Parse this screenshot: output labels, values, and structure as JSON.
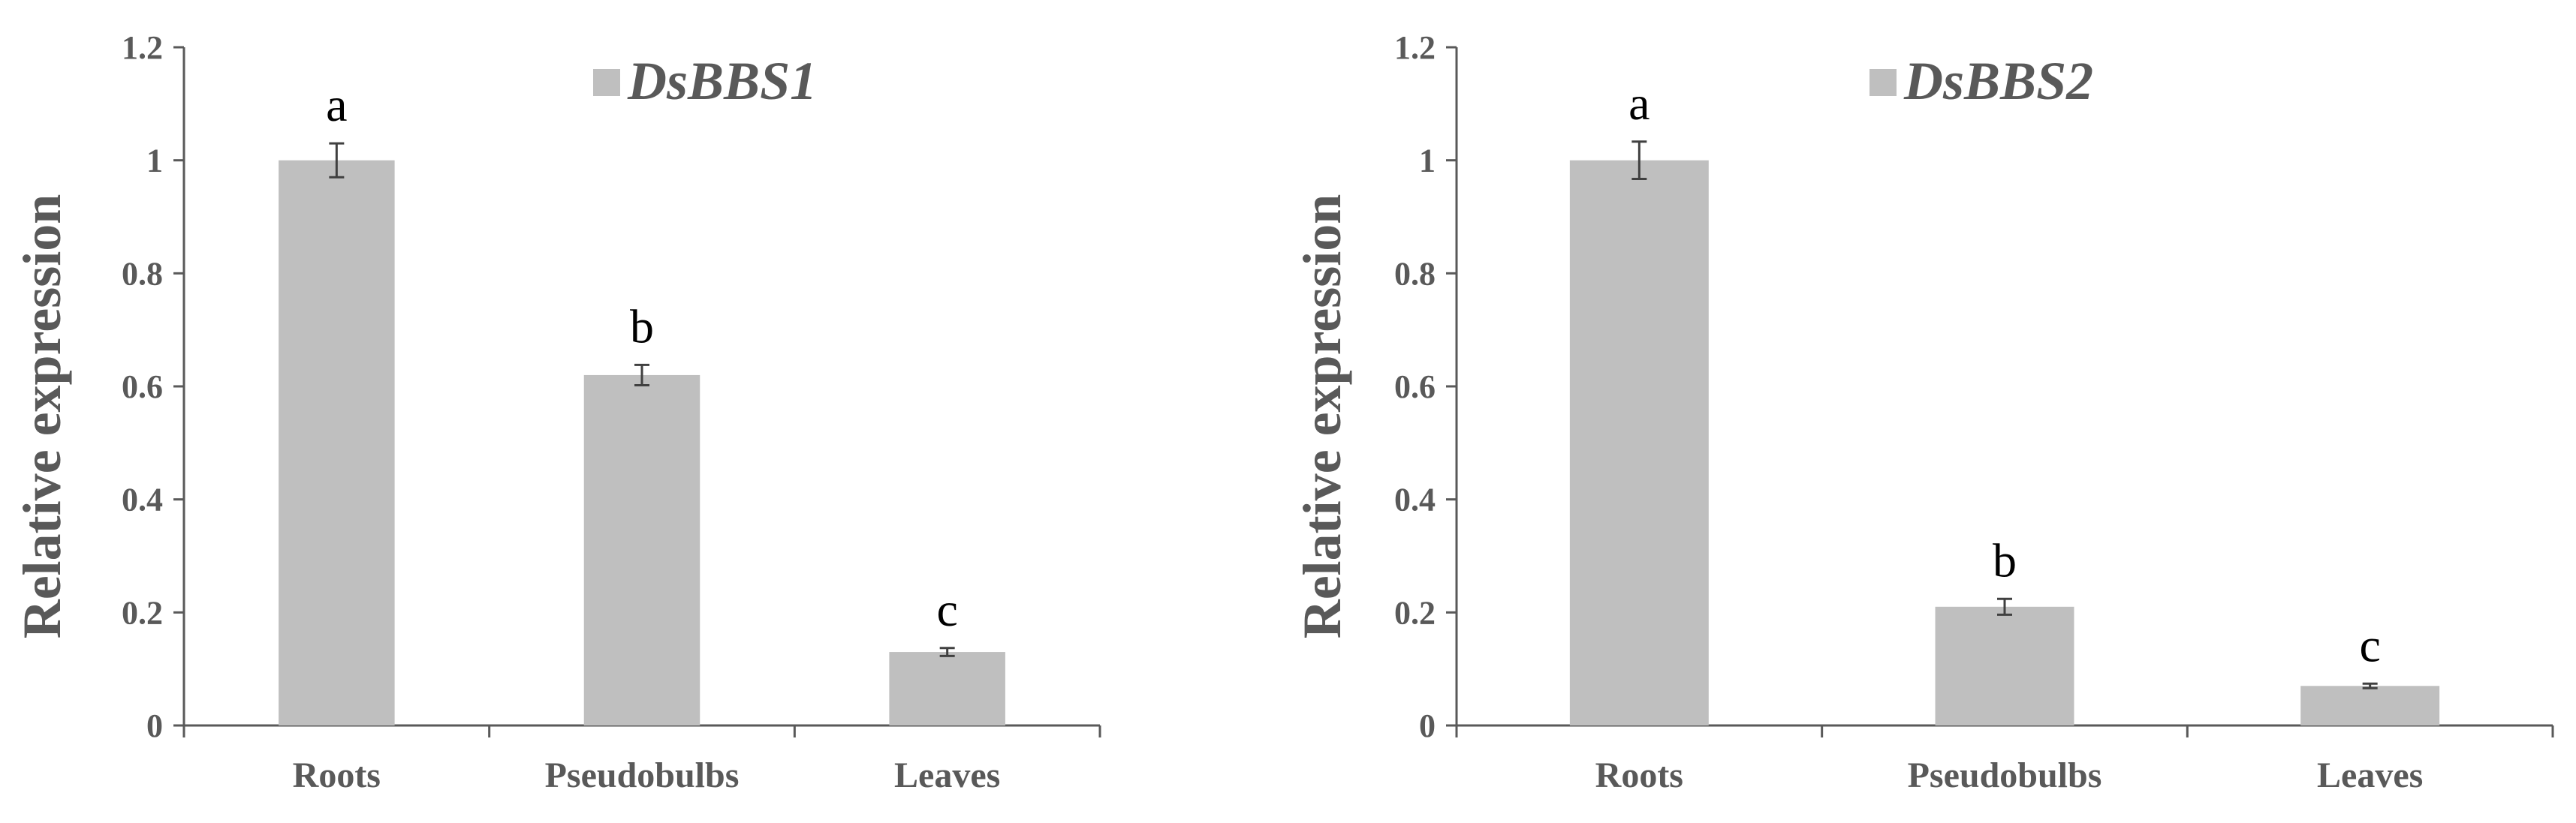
{
  "chart_data": [
    {
      "type": "bar",
      "ylabel": "Relative expression",
      "ylim": [
        0,
        1.2
      ],
      "yticks": [
        "0",
        "0.2",
        "0.4",
        "0.6",
        "0.8",
        "1",
        "1.2"
      ],
      "categories": [
        "Roots",
        "Pseudobulbs",
        "Leaves"
      ],
      "series": [
        {
          "name": "DsBBS1",
          "values": [
            1.0,
            0.62,
            0.13
          ],
          "errors": [
            0.03,
            0.018,
            0.007
          ],
          "significance": [
            "a",
            "b",
            "c"
          ]
        }
      ],
      "legend_position": "top-center",
      "bar_color": "#bfbfbf"
    },
    {
      "type": "bar",
      "ylabel": "Relative expression",
      "ylim": [
        0,
        1.2
      ],
      "yticks": [
        "0",
        "0.2",
        "0.4",
        "0.6",
        "0.8",
        "1",
        "1.2"
      ],
      "categories": [
        "Roots",
        "Pseudobulbs",
        "Leaves"
      ],
      "series": [
        {
          "name": "DsBBS2",
          "values": [
            1.0,
            0.21,
            0.07
          ],
          "errors": [
            0.033,
            0.014,
            0.004
          ],
          "significance": [
            "a",
            "b",
            "c"
          ]
        }
      ],
      "legend_position": "top-center",
      "bar_color": "#bfbfbf"
    }
  ]
}
